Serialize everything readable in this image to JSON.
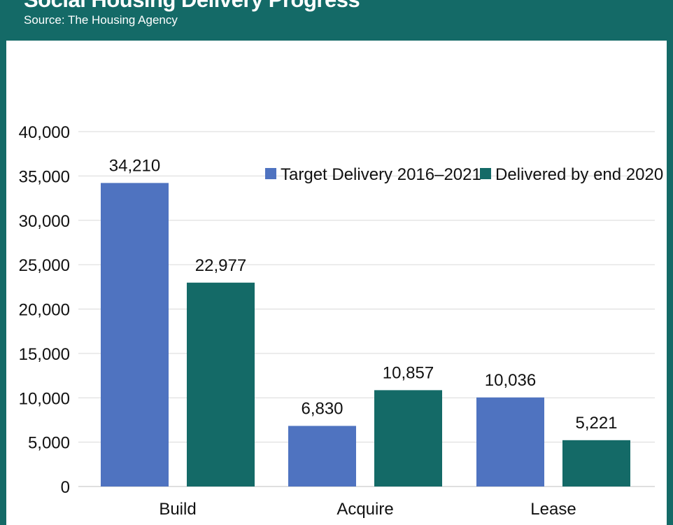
{
  "header": {
    "title": "Social Housing Delivery Progress",
    "subtitle": "Source: The Housing Agency"
  },
  "colors": {
    "frame": "#146a67",
    "target": "#4f73c0",
    "delivered": "#146a67",
    "grid": "#d9d9d9"
  },
  "chart_data": {
    "type": "bar",
    "categories": [
      "Build",
      "Acquire",
      "Lease"
    ],
    "series": [
      {
        "name": "Target Delivery 2016–2021",
        "values": [
          34210,
          6830,
          10036
        ],
        "labels": [
          "34,210",
          "6,830",
          "10,036"
        ],
        "color": "#4f73c0"
      },
      {
        "name": "Delivered by end 2020",
        "values": [
          22977,
          10857,
          5221
        ],
        "labels": [
          "22,977",
          "10,857",
          "5,221"
        ],
        "color": "#146a67"
      }
    ],
    "ylim": [
      0,
      40000
    ],
    "yticks": [
      0,
      5000,
      10000,
      15000,
      20000,
      25000,
      30000,
      35000,
      40000
    ],
    "ytick_labels": [
      "0",
      "5,000",
      "10,000",
      "15,000",
      "20,000",
      "25,000",
      "30,000",
      "35,000",
      "40,000"
    ],
    "legend_position": "top-right",
    "grid": true
  }
}
